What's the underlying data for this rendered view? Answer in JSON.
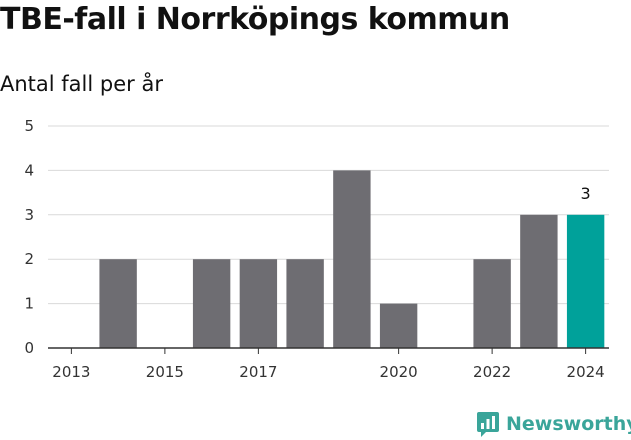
{
  "header": {
    "title": "TBE-fall i Norrköpings kommun",
    "subtitle": "Antal fall per år"
  },
  "brand": {
    "name": "Newsworthy",
    "icon": "newsworthy-logo-icon",
    "color": "#3aa59a"
  },
  "chart_data": {
    "type": "bar",
    "categories": [
      "2013",
      "2014",
      "2015",
      "2016",
      "2017",
      "2018",
      "2019",
      "2020",
      "2021",
      "2022",
      "2023",
      "2024"
    ],
    "x_tick_labels": [
      "2013",
      "2015",
      "2017",
      "2020",
      "2022",
      "2024"
    ],
    "values": [
      0,
      2,
      0,
      2,
      2,
      2,
      4,
      1,
      0,
      2,
      3,
      3
    ],
    "highlight_index": 11,
    "highlight_label": "3",
    "ylim": [
      0,
      5
    ],
    "yticks": [
      0,
      1,
      2,
      3,
      4,
      5
    ],
    "grid": true,
    "colors": {
      "bar": "#6e6d72",
      "highlight": "#00a19a",
      "grid": "#d9d9d9",
      "axis": "#333333"
    }
  }
}
